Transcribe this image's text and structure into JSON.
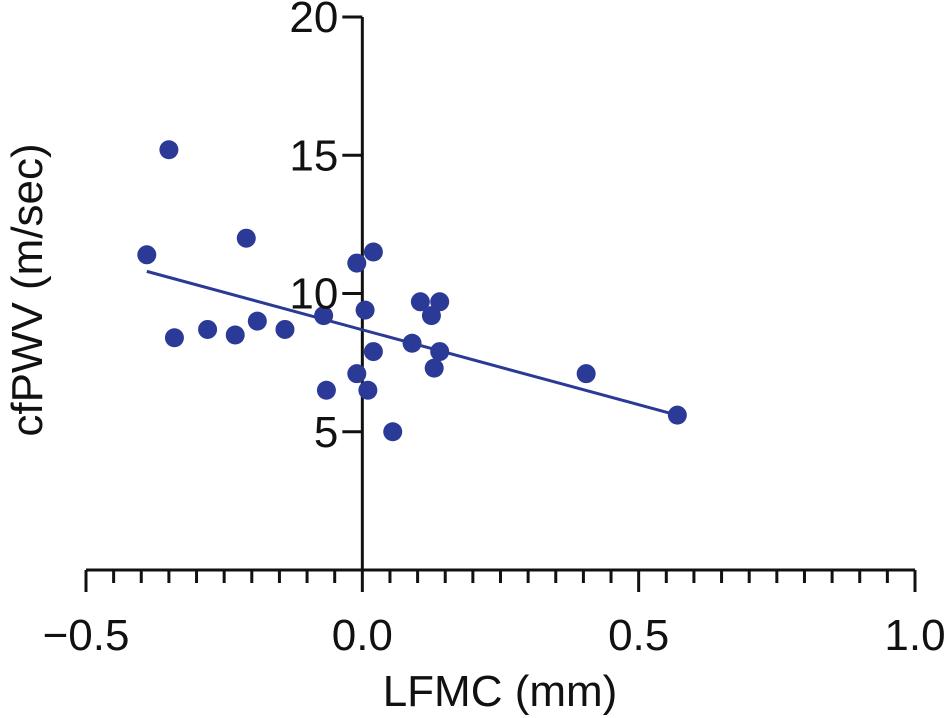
{
  "chart_data": {
    "type": "scatter",
    "title": "",
    "xlabel": "LFMC (mm)",
    "ylabel": "cfPWV (m/sec)",
    "xlim": [
      -0.5,
      1.0
    ],
    "ylim": [
      0,
      20
    ],
    "x_ticks": [
      -0.5,
      0.0,
      0.5,
      1.0
    ],
    "x_tick_labels": [
      "−0.5",
      "0.0",
      "0.5",
      "1.0"
    ],
    "x_minor_step": 0.05,
    "y_ticks": [
      5,
      10,
      15,
      20
    ],
    "y_tick_labels": [
      "5",
      "10",
      "15",
      "20"
    ],
    "grid": false,
    "colors": {
      "points": "#2b3a96",
      "line": "#2b3a96",
      "axis": "#111111"
    },
    "points": [
      {
        "x": -0.35,
        "y": 15.2
      },
      {
        "x": -0.39,
        "y": 11.4
      },
      {
        "x": -0.21,
        "y": 12.0
      },
      {
        "x": -0.34,
        "y": 8.4
      },
      {
        "x": -0.28,
        "y": 8.7
      },
      {
        "x": -0.23,
        "y": 8.5
      },
      {
        "x": -0.19,
        "y": 9.0
      },
      {
        "x": -0.14,
        "y": 8.7
      },
      {
        "x": -0.07,
        "y": 9.2
      },
      {
        "x": -0.065,
        "y": 6.5
      },
      {
        "x": -0.01,
        "y": 11.1
      },
      {
        "x": 0.02,
        "y": 11.5
      },
      {
        "x": 0.005,
        "y": 9.4
      },
      {
        "x": 0.02,
        "y": 7.9
      },
      {
        "x": -0.01,
        "y": 7.1
      },
      {
        "x": 0.01,
        "y": 6.5
      },
      {
        "x": 0.055,
        "y": 5.0
      },
      {
        "x": 0.09,
        "y": 8.2
      },
      {
        "x": 0.105,
        "y": 9.7
      },
      {
        "x": 0.125,
        "y": 9.2
      },
      {
        "x": 0.14,
        "y": 9.7
      },
      {
        "x": 0.14,
        "y": 7.9
      },
      {
        "x": 0.13,
        "y": 7.3
      },
      {
        "x": 0.405,
        "y": 7.1
      },
      {
        "x": 0.57,
        "y": 5.6
      }
    ],
    "regression": {
      "x1": -0.39,
      "y1": 10.8,
      "x2": 0.57,
      "y2": 5.6
    }
  }
}
